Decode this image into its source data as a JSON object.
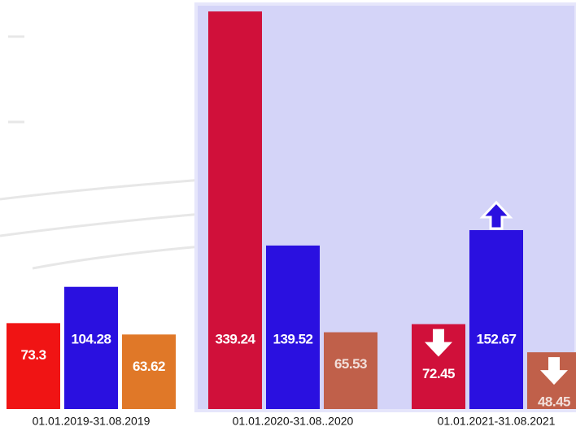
{
  "chart_data": {
    "type": "bar",
    "categories": [
      "01.01.2019-31.08.2019",
      "01.01.2020-31.08..2020",
      "01.01.2021-31.08.2021"
    ],
    "series": [
      {
        "color": "#d0103a",
        "colors": [
          "#f01414",
          "#d0103a",
          "#d0103a"
        ],
        "values": [
          73.3,
          339.24,
          72.45
        ],
        "arrows": [
          null,
          null,
          "down"
        ]
      },
      {
        "color": "#2a10e0",
        "colors": [
          "#2a10e0",
          "#2a10e0",
          "#2a10e0"
        ],
        "values": [
          104.28,
          139.52,
          152.67
        ],
        "arrows": [
          null,
          null,
          "up"
        ]
      },
      {
        "color": "#c0604a",
        "colors": [
          "#e07828",
          "#c0604a",
          "#c0604a"
        ],
        "values": [
          63.62,
          65.53,
          48.45
        ],
        "arrows": [
          null,
          null,
          "down"
        ]
      }
    ],
    "ylim": [
      0,
      340
    ]
  }
}
